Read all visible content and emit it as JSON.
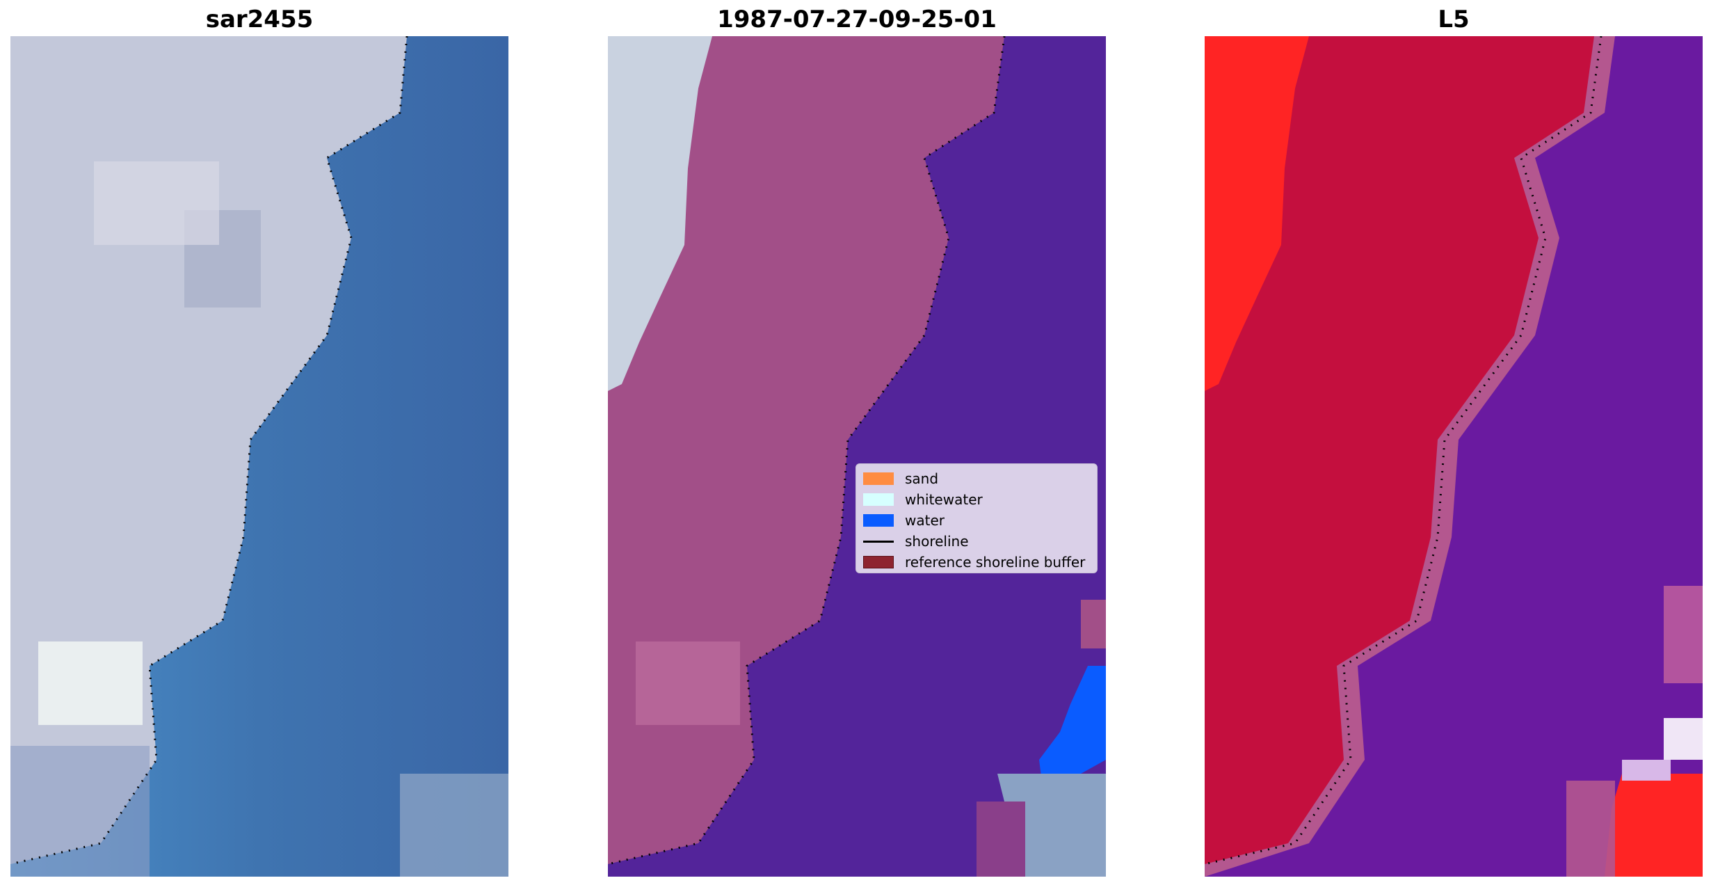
{
  "panels": [
    {
      "title": "sar2455"
    },
    {
      "title": "1987-07-27-09-25-01"
    },
    {
      "title": "L5"
    }
  ],
  "legend": {
    "items": [
      {
        "label": "sand",
        "kind": "patch",
        "color": "#ff8c42"
      },
      {
        "label": "whitewater",
        "kind": "patch",
        "color": "#d6ffff"
      },
      {
        "label": "water",
        "kind": "patch",
        "color": "#0a5cff"
      },
      {
        "label": "shoreline",
        "kind": "line",
        "color": "#000000"
      },
      {
        "label": "reference shoreline buffer",
        "kind": "patch",
        "color": "#8e2430"
      }
    ]
  },
  "colors": {
    "sand_overlay": "#a24f88",
    "water_overlay": "#53249a",
    "water_detected": "#0a5cff",
    "rgb_land": "#c3c8da",
    "rgb_water": "#3f74b0",
    "index_land": "#c40f3e",
    "index_water": "#6a1aa0",
    "index_high": "#ff2424",
    "shoreline": "#000000"
  },
  "icons": [
    "shoreline-dotted-line"
  ]
}
